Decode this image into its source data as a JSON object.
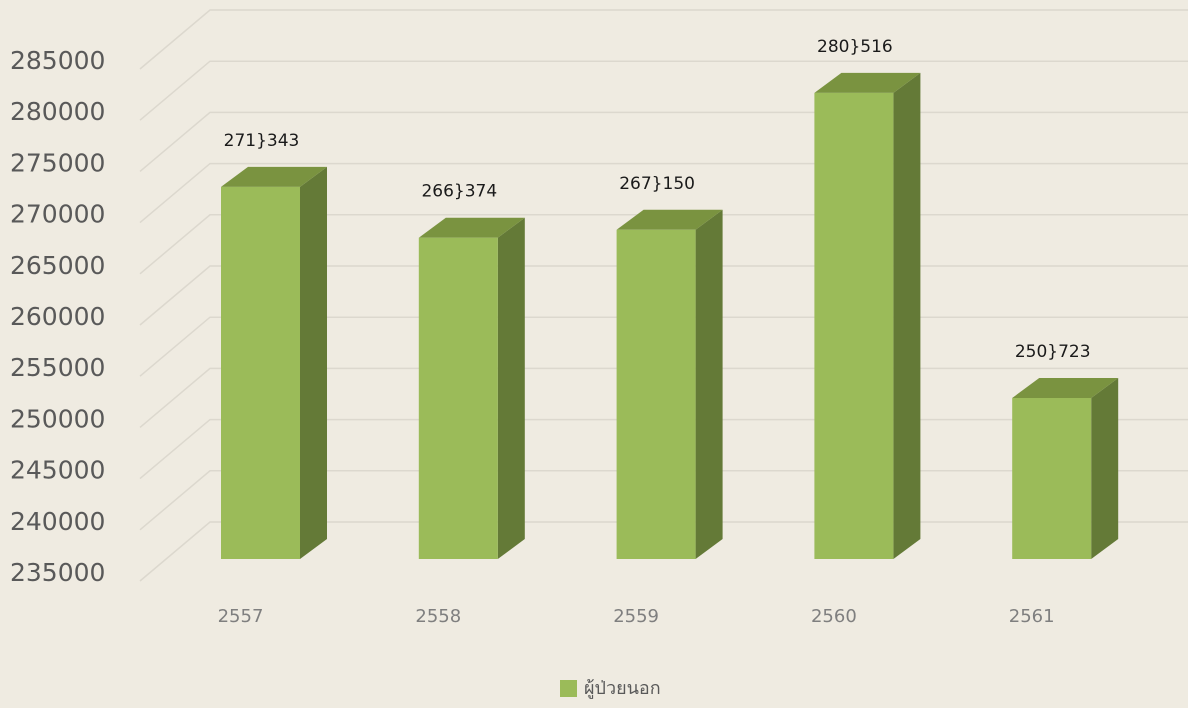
{
  "chart_data": {
    "type": "bar3d",
    "categories": [
      "2557",
      "2558",
      "2559",
      "2560",
      "2561"
    ],
    "series": [
      {
        "name": "ผู้ป่วยนอก",
        "color": "#9bbb59",
        "values": [
          271343,
          266374,
          267150,
          280516,
          250723
        ],
        "value_labels": [
          "271}343",
          "266}374",
          "267}150",
          "280}516",
          "250}723"
        ]
      }
    ],
    "ylim": [
      235000,
      285000
    ],
    "yticks": [
      235000,
      240000,
      245000,
      250000,
      255000,
      260000,
      265000,
      270000,
      275000,
      280000,
      285000
    ],
    "grid": true,
    "legend": "bottom"
  }
}
